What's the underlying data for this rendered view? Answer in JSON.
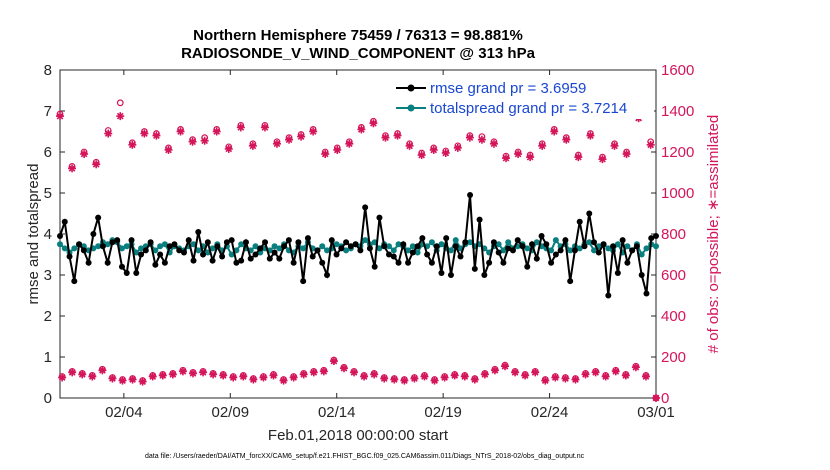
{
  "chart_data": {
    "type": "line",
    "title": "Northern Hemisphere 75459 / 76313 = 98.881%",
    "subtitle": "RADIOSONDE_V_WIND_COMPONENT @ 313 hPa",
    "xlabel": "Feb.01,2018 00:00:00 start",
    "ylabel": "rmse and totalspread",
    "y2label": "# of obs: o=possible; ∗=assimilated",
    "xlim": [
      0,
      28
    ],
    "ylim": [
      0,
      8
    ],
    "y2lim": [
      0,
      1600
    ],
    "x_ticks": [
      3,
      8,
      13,
      18,
      23,
      28
    ],
    "x_tick_labels": [
      "02/04",
      "02/09",
      "02/14",
      "02/19",
      "02/24",
      "03/01"
    ],
    "y_ticks": [
      "0",
      "1",
      "2",
      "3",
      "4",
      "5",
      "6",
      "7",
      "8"
    ],
    "y2_ticks": [
      "0",
      "200",
      "400",
      "600",
      "800",
      "1000",
      "1200",
      "1400",
      "1600"
    ],
    "footer": "data file: /Users/raeder/DAI/ATM_forcXX/CAM6_setup/f.e21.FHIST_BGC.f09_025.CAM6assim.011/Diags_NTrS_2018-02/obs_diag_output.nc",
    "series": [
      {
        "name": "rmse grand pr = 3.6959",
        "color": "#000000",
        "values": [
          3.95,
          4.3,
          3.45,
          2.85,
          3.75,
          3.6,
          3.3,
          4.0,
          4.4,
          3.7,
          3.3,
          3.8,
          3.85,
          3.2,
          3.05,
          3.85,
          3.05,
          3.5,
          3.6,
          3.8,
          3.25,
          3.5,
          3.3,
          3.7,
          3.75,
          3.6,
          3.55,
          3.85,
          3.35,
          4.05,
          3.5,
          3.8,
          3.35,
          3.7,
          3.45,
          3.8,
          3.85,
          3.3,
          3.35,
          3.8,
          3.4,
          3.5,
          3.65,
          3.8,
          3.4,
          3.55,
          3.4,
          3.7,
          3.85,
          3.3,
          3.8,
          2.85,
          3.9,
          3.45,
          3.6,
          3.3,
          3.0,
          3.85,
          3.5,
          3.65,
          3.8,
          3.7,
          3.75,
          3.6,
          4.65,
          3.65,
          3.2,
          4.4,
          3.7,
          3.5,
          3.45,
          3.3,
          3.75,
          3.3,
          3.55,
          3.7,
          3.9,
          3.5,
          3.3,
          3.7,
          3.05,
          3.9,
          3.0,
          3.7,
          3.45,
          3.8,
          4.95,
          3.15,
          4.35,
          3.0,
          3.3,
          3.8,
          3.55,
          3.3,
          3.65,
          3.6,
          3.85,
          3.7,
          3.2,
          3.75,
          3.4,
          3.95,
          3.75,
          3.3,
          3.5,
          3.6,
          3.85,
          2.85,
          3.6,
          4.3,
          3.7,
          4.5,
          3.8,
          3.55,
          3.75,
          2.5,
          3.7,
          3.05,
          3.85,
          3.3,
          3.6,
          3.7,
          3.0,
          2.55,
          3.9,
          3.95
        ]
      },
      {
        "name": "totalspread grand pr = 3.7214",
        "color": "#0a7f7f",
        "values": [
          3.75,
          3.65,
          3.55,
          3.65,
          3.75,
          3.7,
          3.6,
          3.65,
          3.7,
          3.8,
          3.75,
          3.85,
          3.8,
          3.65,
          3.7,
          3.75,
          3.55,
          3.65,
          3.7,
          3.75,
          3.6,
          3.7,
          3.75,
          3.55,
          3.7,
          3.65,
          3.6,
          3.7,
          3.75,
          3.6,
          3.7,
          3.55,
          3.65,
          3.75,
          3.6,
          3.7,
          3.5,
          3.6,
          3.75,
          3.65,
          3.6,
          3.7,
          3.55,
          3.65,
          3.6,
          3.7,
          3.65,
          3.75,
          3.6,
          3.55,
          3.7,
          3.65,
          3.8,
          3.65,
          3.6,
          3.7,
          3.6,
          3.65,
          3.75,
          3.7,
          3.6,
          3.65,
          3.75,
          3.7,
          3.85,
          3.75,
          3.8,
          3.65,
          3.75,
          3.7,
          3.6,
          3.75,
          3.7,
          3.6,
          3.7,
          3.55,
          3.75,
          3.7,
          3.8,
          3.6,
          3.75,
          3.65,
          3.6,
          3.85,
          3.65,
          3.75,
          3.8,
          3.7,
          3.75,
          3.65,
          3.55,
          3.7,
          3.75,
          3.6,
          3.8,
          3.65,
          3.7,
          3.75,
          3.65,
          3.6,
          3.8,
          3.7,
          3.65,
          3.6,
          3.85,
          3.7,
          3.75,
          3.6,
          3.7,
          3.65,
          3.75,
          3.8,
          3.6,
          3.7,
          3.75,
          3.65,
          3.6,
          3.75,
          3.55,
          3.7,
          3.6,
          3.75,
          3.5,
          3.65,
          3.75,
          3.7
        ]
      },
      {
        "name": "obs possible (o)",
        "color": "#d4155a",
        "axis": "right",
        "values": [
          1385,
          1130,
          1200,
          1150,
          1305,
          1440,
          1245,
          1300,
          1290,
          1220,
          1310,
          1260,
          1270,
          1310,
          1225,
          1330,
          1240,
          1330,
          1250,
          1270,
          1285,
          1310,
          1200,
          1220,
          1250,
          1320,
          1350,
          1280,
          1290,
          1240,
          1195,
          1220,
          1205,
          1230,
          1280,
          1275,
          1250,
          1180,
          1200,
          1185,
          1240,
          1310,
          1270,
          1185,
          1290,
          1175,
          1240,
          1200,
          1370,
          1250
        ]
      },
      {
        "name": "obs assimilated (*)",
        "color": "#d4155a",
        "axis": "right",
        "values": [
          1375,
          1120,
          1190,
          1140,
          1290,
          1375,
          1235,
          1290,
          1280,
          1210,
          1300,
          1250,
          1255,
          1300,
          1215,
          1320,
          1230,
          1320,
          1240,
          1260,
          1275,
          1300,
          1190,
          1210,
          1240,
          1310,
          1340,
          1270,
          1280,
          1230,
          1185,
          1210,
          1195,
          1220,
          1270,
          1260,
          1240,
          1170,
          1190,
          1175,
          1230,
          1300,
          1260,
          1175,
          1280,
          1165,
          1230,
          1190,
          1365,
          1235
        ]
      },
      {
        "name": "obs low possible (o)",
        "color": "#d4155a",
        "axis": "right",
        "values": [
          105,
          130,
          120,
          110,
          140,
          100,
          90,
          95,
          85,
          110,
          115,
          120,
          135,
          125,
          130,
          120,
          115,
          105,
          110,
          95,
          105,
          115,
          90,
          105,
          120,
          130,
          135,
          185,
          150,
          130,
          110,
          120,
          100,
          95,
          90,
          100,
          110,
          90,
          105,
          115,
          110,
          95,
          120,
          140,
          160,
          130,
          115,
          130,
          90,
          105,
          100,
          95,
          120,
          130,
          110,
          135,
          115,
          155,
          110,
          0
        ]
      },
      {
        "name": "obs low assimilated (*)",
        "color": "#d4155a",
        "axis": "right",
        "values": [
          100,
          125,
          115,
          105,
          135,
          95,
          85,
          90,
          80,
          105,
          110,
          115,
          130,
          120,
          125,
          115,
          110,
          100,
          105,
          90,
          100,
          110,
          85,
          100,
          115,
          125,
          130,
          180,
          145,
          125,
          105,
          115,
          95,
          90,
          85,
          95,
          105,
          85,
          100,
          110,
          105,
          90,
          115,
          135,
          155,
          125,
          110,
          125,
          85,
          100,
          95,
          90,
          115,
          125,
          105,
          130,
          110,
          150,
          105,
          0
        ]
      }
    ],
    "legend": [
      {
        "label": "rmse grand pr = 3.6959",
        "color": "#000000"
      },
      {
        "label": "totalspread grand pr = 3.7214",
        "color": "#0a7f7f"
      }
    ]
  }
}
